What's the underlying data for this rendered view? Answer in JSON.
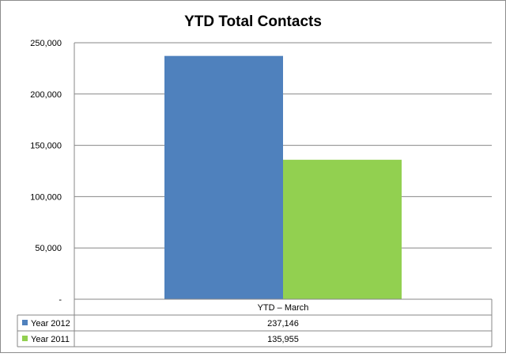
{
  "chart_data": {
    "type": "bar",
    "title": "YTD Total Contacts",
    "categories": [
      "YTD – March"
    ],
    "series": [
      {
        "name": "Year 2012",
        "values": [
          237146
        ],
        "color": "#4F81BD",
        "label": "237,146"
      },
      {
        "name": "Year 2011",
        "values": [
          135955
        ],
        "color": "#92D050",
        "label": "135,955"
      }
    ],
    "ylim": [
      0,
      250000
    ],
    "yticks": [
      {
        "value": 0,
        "label": "-"
      },
      {
        "value": 50000,
        "label": "50,000"
      },
      {
        "value": 100000,
        "label": "100,000"
      },
      {
        "value": 150000,
        "label": "150,000"
      },
      {
        "value": 200000,
        "label": "200,000"
      },
      {
        "value": 250000,
        "label": "250,000"
      }
    ],
    "grid": true,
    "legend": "data-table"
  }
}
